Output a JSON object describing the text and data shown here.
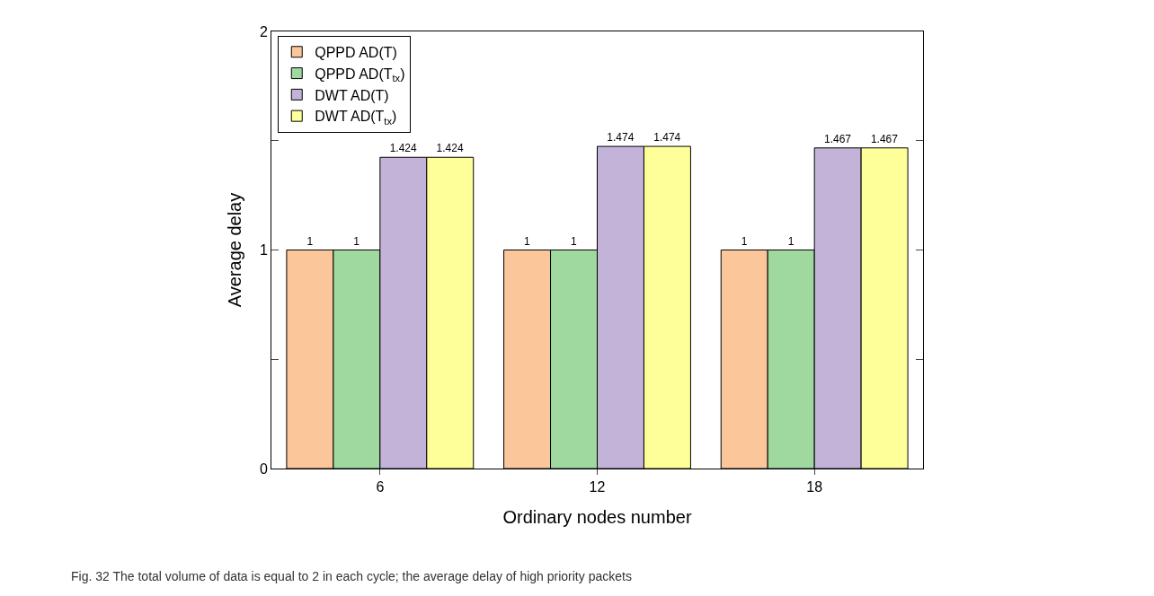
{
  "chart_data": {
    "type": "bar",
    "xlabel": "Ordinary nodes number",
    "ylabel": "Average delay",
    "categories": [
      "6",
      "12",
      "18"
    ],
    "series": [
      {
        "name": "QPPD AD(T)",
        "color": "#fbc69a",
        "values": [
          1,
          1,
          1
        ]
      },
      {
        "name": "QPPD AD(T$_{tx}$)",
        "color": "#a0d9a0",
        "values": [
          1,
          1,
          1
        ]
      },
      {
        "name": "DWT AD(T)",
        "color": "#c3b3d8",
        "values": [
          1.424,
          1.474,
          1.467
        ]
      },
      {
        "name": "DWT AD(T$_{tx}$)",
        "color": "#ffff9a",
        "values": [
          1.424,
          1.474,
          1.467
        ]
      }
    ],
    "ylim": [
      0,
      2
    ],
    "yticks": [
      0,
      {
        "value": 0.5,
        "label": null
      },
      1,
      {
        "value": 1.5,
        "label": null
      },
      2
    ],
    "data_labels": true,
    "legend": "top left",
    "grid": false,
    "annotations": [
      "Fig. 32 The total volume of data is equal to 2 in each cycle; the average delay of high priority packets"
    ]
  }
}
